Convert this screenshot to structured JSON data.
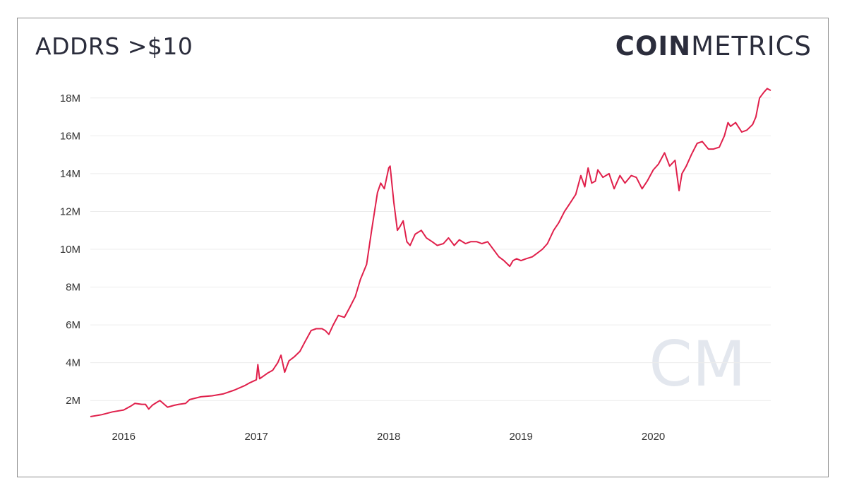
{
  "title": "ADDRS >$10",
  "logo": {
    "bold": "COIN",
    "light": "METRICS",
    "watermark": "CM"
  },
  "colors": {
    "line": "#e0204b",
    "grid": "#ececec",
    "text": "#2b2d3c",
    "watermark": "#e3e7ee"
  },
  "chart_data": {
    "type": "line",
    "title": "ADDRS >$10",
    "xlabel": "",
    "ylabel": "",
    "x_ticks": [
      "2016",
      "2017",
      "2018",
      "2019",
      "2020"
    ],
    "y_ticks": [
      "2M",
      "4M",
      "6M",
      "8M",
      "10M",
      "12M",
      "14M",
      "16M",
      "18M"
    ],
    "xlim": [
      "2015-10-01",
      "2020-11-20"
    ],
    "ylim": [
      1,
      19
    ],
    "y_unit": "millions",
    "grid": true,
    "legend": "none",
    "series": [
      {
        "x": [
          "2015-10-01",
          "2015-11-01",
          "2015-12-01",
          "2016-01-01",
          "2016-01-20",
          "2016-02-01",
          "2016-02-20",
          "2016-03-01",
          "2016-03-10",
          "2016-03-20",
          "2016-04-01",
          "2016-04-10",
          "2016-05-01",
          "2016-05-20",
          "2016-06-01",
          "2016-06-20",
          "2016-07-01",
          "2016-08-01",
          "2016-09-01",
          "2016-10-01",
          "2016-11-01",
          "2016-12-01",
          "2016-12-15",
          "2017-01-01",
          "2017-01-05",
          "2017-01-10",
          "2017-02-01",
          "2017-02-15",
          "2017-03-01",
          "2017-03-10",
          "2017-03-20",
          "2017-04-01",
          "2017-04-15",
          "2017-05-01",
          "2017-05-15",
          "2017-06-01",
          "2017-06-15",
          "2017-07-01",
          "2017-07-10",
          "2017-07-20",
          "2017-08-01",
          "2017-08-15",
          "2017-09-01",
          "2017-09-15",
          "2017-10-01",
          "2017-10-15",
          "2017-11-01",
          "2017-11-15",
          "2017-12-01",
          "2017-12-10",
          "2017-12-20",
          "2018-01-01",
          "2018-01-05",
          "2018-01-15",
          "2018-01-25",
          "2018-02-01",
          "2018-02-10",
          "2018-02-20",
          "2018-03-01",
          "2018-03-15",
          "2018-04-01",
          "2018-04-15",
          "2018-05-01",
          "2018-05-15",
          "2018-06-01",
          "2018-06-15",
          "2018-07-01",
          "2018-07-15",
          "2018-08-01",
          "2018-08-15",
          "2018-09-01",
          "2018-09-15",
          "2018-10-01",
          "2018-11-01",
          "2018-11-15",
          "2018-12-01",
          "2018-12-10",
          "2018-12-20",
          "2019-01-01",
          "2019-01-15",
          "2019-02-01",
          "2019-02-15",
          "2019-03-01",
          "2019-03-15",
          "2019-04-01",
          "2019-04-15",
          "2019-05-01",
          "2019-05-15",
          "2019-06-01",
          "2019-06-15",
          "2019-06-26",
          "2019-07-05",
          "2019-07-15",
          "2019-07-25",
          "2019-08-01",
          "2019-08-15",
          "2019-09-01",
          "2019-09-15",
          "2019-10-01",
          "2019-10-15",
          "2019-11-01",
          "2019-11-15",
          "2019-12-01",
          "2019-12-15",
          "2020-01-01",
          "2020-01-15",
          "2020-02-01",
          "2020-02-15",
          "2020-03-01",
          "2020-03-12",
          "2020-03-20",
          "2020-04-01",
          "2020-04-15",
          "2020-05-01",
          "2020-05-15",
          "2020-06-01",
          "2020-06-15",
          "2020-07-01",
          "2020-07-15",
          "2020-07-25",
          "2020-08-01",
          "2020-08-15",
          "2020-09-01",
          "2020-09-15",
          "2020-10-01",
          "2020-10-10",
          "2020-10-20",
          "2020-11-01",
          "2020-11-10",
          "2020-11-20"
        ],
        "y": [
          1.15,
          1.25,
          1.4,
          1.5,
          1.7,
          1.85,
          1.8,
          1.8,
          1.55,
          1.75,
          1.9,
          2.0,
          1.65,
          1.75,
          1.8,
          1.85,
          2.05,
          2.2,
          2.25,
          2.35,
          2.55,
          2.8,
          2.95,
          3.1,
          3.9,
          3.15,
          3.45,
          3.6,
          4.0,
          4.4,
          3.5,
          4.1,
          4.3,
          4.6,
          5.1,
          5.7,
          5.8,
          5.8,
          5.7,
          5.5,
          6.0,
          6.5,
          6.4,
          6.9,
          7.5,
          8.4,
          9.2,
          11.0,
          13.0,
          13.5,
          13.2,
          14.3,
          14.4,
          12.5,
          11.0,
          11.2,
          11.5,
          10.4,
          10.2,
          10.8,
          11.0,
          10.6,
          10.4,
          10.2,
          10.3,
          10.6,
          10.2,
          10.5,
          10.3,
          10.4,
          10.4,
          10.3,
          10.4,
          9.6,
          9.4,
          9.1,
          9.4,
          9.5,
          9.4,
          9.5,
          9.6,
          9.8,
          10.0,
          10.3,
          11.0,
          11.4,
          12.0,
          12.4,
          12.9,
          13.9,
          13.3,
          14.3,
          13.5,
          13.6,
          14.2,
          13.8,
          14.0,
          13.2,
          13.9,
          13.5,
          13.9,
          13.8,
          13.2,
          13.6,
          14.2,
          14.5,
          15.1,
          14.4,
          14.7,
          13.1,
          14.0,
          14.4,
          15.0,
          15.6,
          15.7,
          15.3,
          15.3,
          15.4,
          16.0,
          16.7,
          16.5,
          16.7,
          16.2,
          16.3,
          16.6,
          17.0,
          18.0,
          18.3,
          18.5,
          18.4
        ]
      }
    ]
  }
}
